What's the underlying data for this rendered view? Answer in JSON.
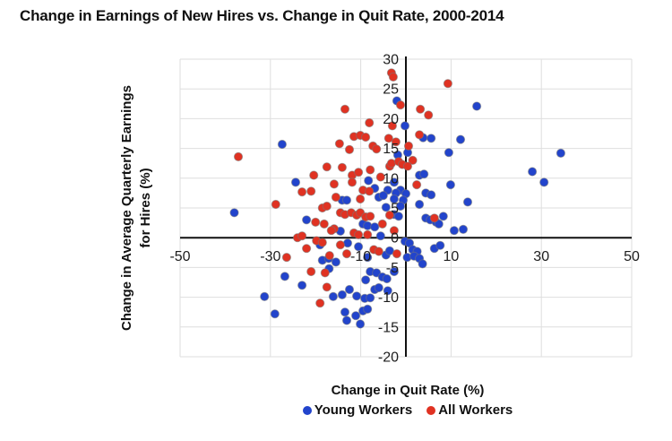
{
  "title": "Change in Earnings of New Hires vs. Change in Quit Rate, 2000-2014",
  "colors": {
    "young_workers": "#2244cc",
    "all_workers": "#e03222",
    "grid": "#dedede",
    "axis_line": "#111111",
    "tick_text": "#1d1d1d"
  },
  "chart_data": {
    "type": "scatter",
    "title": "Change in Earnings of New Hires vs. Change in Quit Rate, 2000-2014",
    "xlabel": "Change in Quit Rate (%)",
    "ylabel": "Change in Average Quarterly Earnings for Hires (%)",
    "ylabel_lines": [
      "Change in Average Quarterly Earnings",
      "for Hires (%)"
    ],
    "xlim": [
      -50,
      50
    ],
    "ylim": [
      -20,
      30
    ],
    "x_ticks": [
      -50,
      -30,
      -10,
      10,
      30,
      50
    ],
    "y_ticks": [
      30,
      25,
      20,
      15,
      10,
      5,
      0,
      -5,
      -10,
      -15,
      -20
    ],
    "grid": true,
    "legend_position": "bottom",
    "series": [
      {
        "name": "Young Workers",
        "color": "#2244cc",
        "points": [
          [
            -2.0,
            23.0
          ],
          [
            15.7,
            22.1
          ],
          [
            -0.2,
            18.8
          ],
          [
            3.8,
            16.8
          ],
          [
            5.6,
            16.7
          ],
          [
            12.1,
            16.5
          ],
          [
            -27.4,
            15.7
          ],
          [
            34.3,
            14.2
          ],
          [
            9.5,
            14.3
          ],
          [
            -1.8,
            13.9
          ],
          [
            0.4,
            14.3
          ],
          [
            28.0,
            11.1
          ],
          [
            30.6,
            9.3
          ],
          [
            -24.4,
            9.3
          ],
          [
            3.0,
            10.5
          ],
          [
            4.0,
            10.7
          ],
          [
            -8.3,
            9.6
          ],
          [
            -2.6,
            9.3
          ],
          [
            9.9,
            8.9
          ],
          [
            -6.9,
            8.3
          ],
          [
            -4.0,
            8.0
          ],
          [
            -1.2,
            8.0
          ],
          [
            -2.2,
            7.5
          ],
          [
            0.0,
            7.4
          ],
          [
            4.4,
            7.5
          ],
          [
            5.6,
            7.2
          ],
          [
            -14.1,
            6.3
          ],
          [
            -13.1,
            6.3
          ],
          [
            -6.0,
            6.8
          ],
          [
            -5.0,
            7.1
          ],
          [
            -2.6,
            6.5
          ],
          [
            -0.6,
            6.3
          ],
          [
            13.7,
            6.0
          ],
          [
            -1.2,
            5.3
          ],
          [
            3.0,
            5.6
          ],
          [
            -4.4,
            5.1
          ],
          [
            -38.0,
            4.2
          ],
          [
            -22.0,
            3.0
          ],
          [
            -2.6,
            3.9
          ],
          [
            -1.6,
            3.6
          ],
          [
            4.4,
            3.3
          ],
          [
            5.4,
            3.0
          ],
          [
            6.7,
            2.6
          ],
          [
            7.3,
            2.3
          ],
          [
            8.3,
            3.6
          ],
          [
            -9.5,
            2.3
          ],
          [
            -8.5,
            2.0
          ],
          [
            -14.5,
            1.1
          ],
          [
            -6.9,
            1.8
          ],
          [
            -5.6,
            0.3
          ],
          [
            10.7,
            1.2
          ],
          [
            12.7,
            1.4
          ],
          [
            -0.2,
            -0.6
          ],
          [
            0.8,
            -0.9
          ],
          [
            1.5,
            -2.0
          ],
          [
            2.5,
            -2.3
          ],
          [
            6.3,
            -1.8
          ],
          [
            7.6,
            -1.3
          ],
          [
            0.3,
            -3.3
          ],
          [
            1.8,
            -3.1
          ],
          [
            3.0,
            -3.5
          ],
          [
            3.7,
            -4.4
          ],
          [
            -4.4,
            -2.9
          ],
          [
            -3.6,
            -2.2
          ],
          [
            -8.5,
            -3.3
          ],
          [
            -10.5,
            -1.5
          ],
          [
            -12.9,
            -0.9
          ],
          [
            -19.0,
            -1.2
          ],
          [
            -18.5,
            -3.8
          ],
          [
            -17.1,
            -3.5
          ],
          [
            -15.5,
            -4.1
          ],
          [
            -17.0,
            -5.2
          ],
          [
            -2.6,
            -5.7
          ],
          [
            -7.9,
            -5.7
          ],
          [
            -6.5,
            -5.9
          ],
          [
            -5.2,
            -6.6
          ],
          [
            -4.2,
            -6.9
          ],
          [
            -8.9,
            -7.1
          ],
          [
            -26.8,
            -6.5
          ],
          [
            -23.0,
            -8.0
          ],
          [
            -6.9,
            -8.7
          ],
          [
            -6.0,
            -8.4
          ],
          [
            -4.0,
            -8.9
          ],
          [
            -31.3,
            -9.9
          ],
          [
            -16.1,
            -9.9
          ],
          [
            -14.1,
            -9.6
          ],
          [
            -12.5,
            -8.7
          ],
          [
            -10.9,
            -9.8
          ],
          [
            -9.1,
            -10.2
          ],
          [
            -7.9,
            -10.1
          ],
          [
            -29.0,
            -12.8
          ],
          [
            -13.5,
            -12.5
          ],
          [
            -13.1,
            -13.9
          ],
          [
            -11.1,
            -13.1
          ],
          [
            -9.5,
            -12.3
          ],
          [
            -8.5,
            -12.0
          ],
          [
            -10.1,
            -14.5
          ]
        ]
      },
      {
        "name": "All Workers",
        "color": "#e03222",
        "points": [
          [
            -3.2,
            27.7
          ],
          [
            -2.8,
            27.0
          ],
          [
            9.3,
            25.9
          ],
          [
            -1.2,
            22.3
          ],
          [
            3.2,
            21.6
          ],
          [
            -13.5,
            21.6
          ],
          [
            5.0,
            20.6
          ],
          [
            -8.1,
            19.3
          ],
          [
            -3.0,
            18.8
          ],
          [
            3.0,
            17.3
          ],
          [
            -11.5,
            17.0
          ],
          [
            -10.1,
            17.2
          ],
          [
            -8.9,
            16.9
          ],
          [
            -3.8,
            16.7
          ],
          [
            -2.2,
            16.1
          ],
          [
            -37.1,
            13.6
          ],
          [
            -14.7,
            15.8
          ],
          [
            -12.5,
            14.8
          ],
          [
            -7.3,
            15.4
          ],
          [
            -6.5,
            14.9
          ],
          [
            0.6,
            15.4
          ],
          [
            1.5,
            13.0
          ],
          [
            -17.5,
            11.9
          ],
          [
            -20.4,
            10.5
          ],
          [
            -14.1,
            11.8
          ],
          [
            -11.9,
            10.5
          ],
          [
            -10.5,
            11.0
          ],
          [
            -7.9,
            11.4
          ],
          [
            -3.6,
            12.0
          ],
          [
            -5.6,
            10.2
          ],
          [
            -3.2,
            12.5
          ],
          [
            -1.6,
            12.8
          ],
          [
            -0.8,
            12.3
          ],
          [
            0.4,
            12.0
          ],
          [
            -11.9,
            9.3
          ],
          [
            -15.9,
            9.0
          ],
          [
            -21.0,
            7.8
          ],
          [
            -9.5,
            8.0
          ],
          [
            -8.1,
            7.8
          ],
          [
            2.4,
            8.9
          ],
          [
            -23.0,
            7.7
          ],
          [
            -15.5,
            6.8
          ],
          [
            -10.1,
            6.5
          ],
          [
            -28.8,
            5.6
          ],
          [
            -18.5,
            5.0
          ],
          [
            -17.5,
            5.3
          ],
          [
            -14.5,
            4.2
          ],
          [
            -13.5,
            3.9
          ],
          [
            -12.1,
            4.2
          ],
          [
            -10.9,
            3.8
          ],
          [
            -10.1,
            4.2
          ],
          [
            -8.9,
            3.5
          ],
          [
            -7.9,
            3.6
          ],
          [
            -3.6,
            3.8
          ],
          [
            6.3,
            3.3
          ],
          [
            -20.0,
            2.6
          ],
          [
            -18.1,
            2.3
          ],
          [
            -15.9,
            1.5
          ],
          [
            -16.5,
            1.2
          ],
          [
            -5.2,
            2.3
          ],
          [
            -2.6,
            1.2
          ],
          [
            -11.5,
            0.8
          ],
          [
            -10.5,
            0.5
          ],
          [
            -8.5,
            0.5
          ],
          [
            -24.0,
            0.0
          ],
          [
            -23.0,
            0.3
          ],
          [
            -19.8,
            -0.5
          ],
          [
            -18.5,
            -0.8
          ],
          [
            -22.0,
            -1.8
          ],
          [
            -14.5,
            -1.2
          ],
          [
            -13.1,
            -2.7
          ],
          [
            -7.1,
            -2.0
          ],
          [
            -6.0,
            -2.3
          ],
          [
            -2.0,
            -2.7
          ],
          [
            -26.4,
            -3.3
          ],
          [
            -16.9,
            -3.0
          ],
          [
            -21.0,
            -5.7
          ],
          [
            -17.9,
            -5.9
          ],
          [
            -17.5,
            -8.3
          ],
          [
            -19.0,
            -11.0
          ]
        ]
      }
    ]
  },
  "legend": {
    "young_label": "Young Workers",
    "all_label": "All Workers"
  }
}
